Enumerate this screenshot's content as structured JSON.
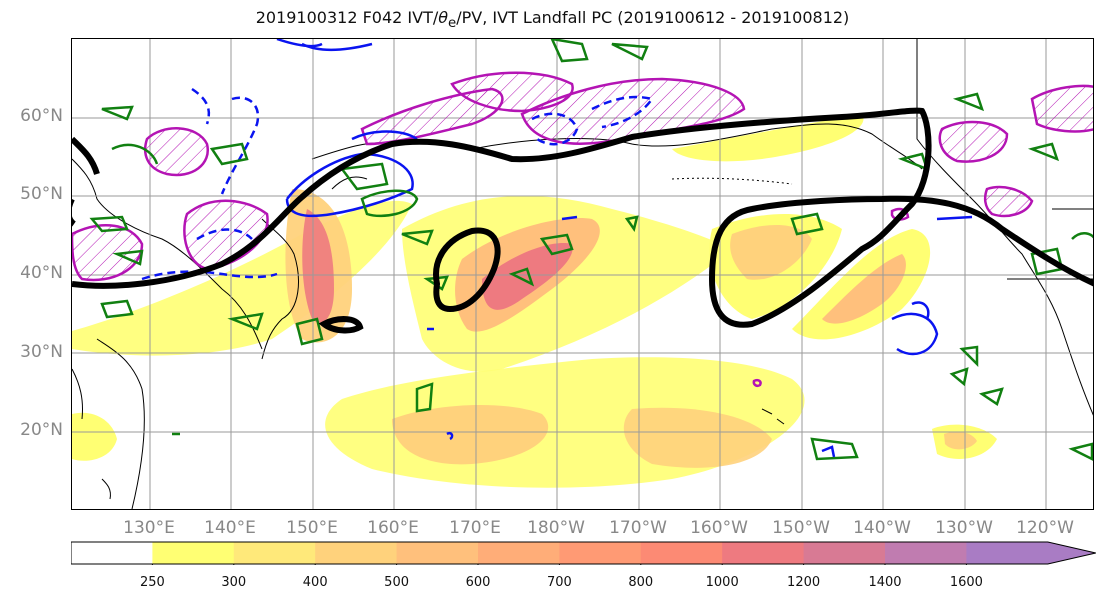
{
  "title": "2019100312 F042 IVT/θe/PV, IVT Landfall PC (2019100612 - 2019100812)",
  "title_parts": {
    "pre": "2019100312 F042 IVT/",
    "theta": "θ",
    "sub": "e",
    "post": "/PV, IVT Landfall PC (2019100612 - 2019100812)"
  },
  "lat_labels": [
    "60°N",
    "50°N",
    "40°N",
    "30°N",
    "20°N"
  ],
  "lon_labels": [
    "130°E",
    "140°E",
    "150°E",
    "160°E",
    "170°E",
    "180°W",
    "170°W",
    "160°W",
    "150°W",
    "140°W",
    "130°W",
    "120°W"
  ],
  "colorbar": {
    "ticks": [
      "250",
      "300",
      "400",
      "500",
      "600",
      "700",
      "800",
      "1000",
      "1200",
      "1400",
      "1600"
    ],
    "colors": [
      "#ffff73",
      "#ffe97a",
      "#ffd27c",
      "#ffc07c",
      "#ffad78",
      "#ff9a74",
      "#fc8a74",
      "#ee7a80",
      "#d87a94",
      "#c07cb0",
      "#a97cc4"
    ]
  },
  "colors": {
    "thick_contour": "#000000",
    "pv_green": "#118011",
    "theta_blue": "#0a14f0",
    "pv_magenta": "#b414b4",
    "coast": "#000000"
  }
}
